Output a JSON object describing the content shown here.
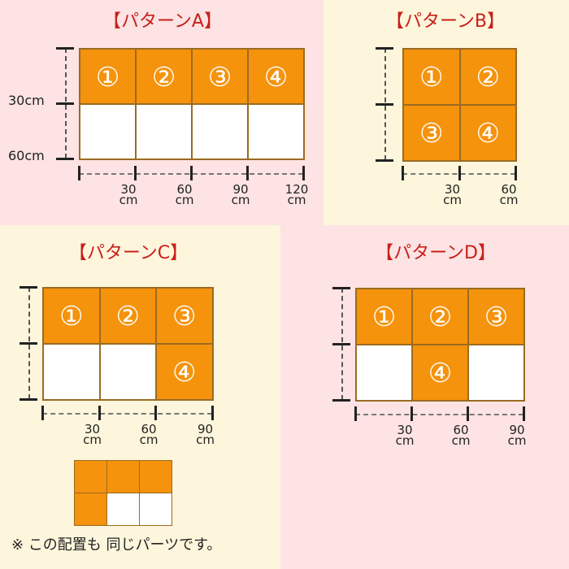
{
  "colors": {
    "pink_bg": "#fde3e3",
    "cream_bg": "#fef6dc",
    "tile_orange": "#f5930c",
    "tile_border": "#9a6b22",
    "title_red": "#c8201c"
  },
  "patterns": [
    {
      "title": "【パターンA】",
      "rows": [
        [
          {
            "label": "①",
            "filled": true
          },
          {
            "label": "②",
            "filled": true
          },
          {
            "label": "③",
            "filled": true
          },
          {
            "label": "④",
            "filled": true
          }
        ],
        [
          {
            "label": "",
            "filled": false
          },
          {
            "label": "",
            "filled": false
          },
          {
            "label": "",
            "filled": false
          },
          {
            "label": "",
            "filled": false
          }
        ]
      ],
      "y_labels": [
        "30cm",
        "60cm"
      ],
      "x_labels": [
        {
          "num": "30",
          "unit": "cm"
        },
        {
          "num": "60",
          "unit": "cm"
        },
        {
          "num": "90",
          "unit": "cm"
        },
        {
          "num": "120",
          "unit": "cm"
        }
      ]
    },
    {
      "title": "【パターンB】",
      "rows": [
        [
          {
            "label": "①",
            "filled": true
          },
          {
            "label": "②",
            "filled": true
          }
        ],
        [
          {
            "label": "③",
            "filled": true
          },
          {
            "label": "④",
            "filled": true
          }
        ]
      ],
      "y_labels": [],
      "x_labels": [
        {
          "num": "30",
          "unit": "cm"
        },
        {
          "num": "60",
          "unit": "cm"
        }
      ]
    },
    {
      "title": "【パターンC】",
      "rows": [
        [
          {
            "label": "①",
            "filled": true
          },
          {
            "label": "②",
            "filled": true
          },
          {
            "label": "③",
            "filled": true
          }
        ],
        [
          {
            "label": "",
            "filled": false
          },
          {
            "label": "",
            "filled": false
          },
          {
            "label": "④",
            "filled": true
          }
        ]
      ],
      "y_labels": [],
      "x_labels": [
        {
          "num": "30",
          "unit": "cm"
        },
        {
          "num": "60",
          "unit": "cm"
        },
        {
          "num": "90",
          "unit": "cm"
        }
      ]
    },
    {
      "title": "【パターンD】",
      "rows": [
        [
          {
            "label": "①",
            "filled": true
          },
          {
            "label": "②",
            "filled": true
          },
          {
            "label": "③",
            "filled": true
          }
        ],
        [
          {
            "label": "",
            "filled": false
          },
          {
            "label": "④",
            "filled": true
          },
          {
            "label": "",
            "filled": false
          }
        ]
      ],
      "y_labels": [],
      "x_labels": [
        {
          "num": "30",
          "unit": "cm"
        },
        {
          "num": "60",
          "unit": "cm"
        },
        {
          "num": "90",
          "unit": "cm"
        }
      ]
    }
  ],
  "alt_layout": {
    "rows": [
      [
        true,
        true,
        true
      ],
      [
        true,
        false,
        false
      ]
    ],
    "note": "※ この配置も 同じパーツです。"
  }
}
